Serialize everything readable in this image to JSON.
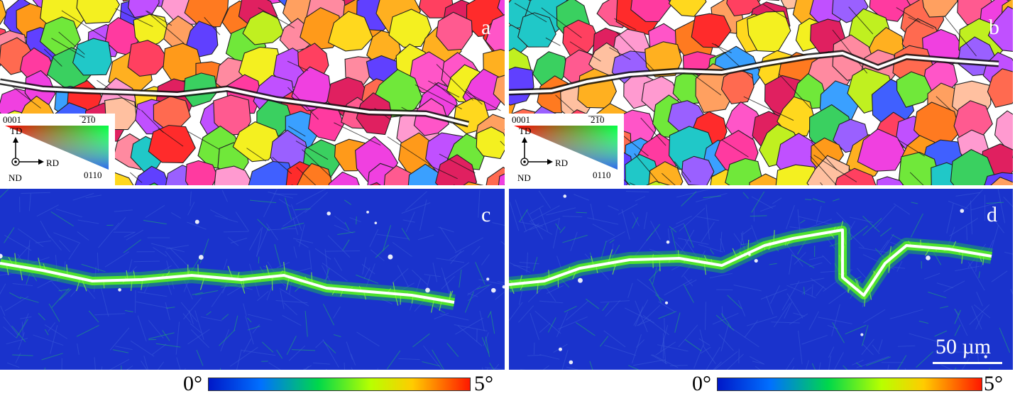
{
  "panels": {
    "a": {
      "label": "a"
    },
    "b": {
      "label": "b"
    },
    "c": {
      "label": "c"
    },
    "d": {
      "label": "d"
    }
  },
  "ipf_key": {
    "corner_top_left": "0001",
    "corner_top_right": "̅2̅1̅0",
    "corner_bottom": "0110",
    "axis_up": "TD",
    "axis_right": "RD",
    "axis_out": "ND"
  },
  "kam_scale": {
    "min_label": "0°",
    "max_label": "5°",
    "gradient": [
      "#0022cc",
      "#0088ff",
      "#00dd44",
      "#ccff00",
      "#ffcc00",
      "#ff2200"
    ]
  },
  "scale_bar": {
    "label": "50 µm"
  },
  "colors": {
    "kam_background": "#1a33cc",
    "crack": "#ffffff",
    "kam_band": "#55ee22"
  }
}
